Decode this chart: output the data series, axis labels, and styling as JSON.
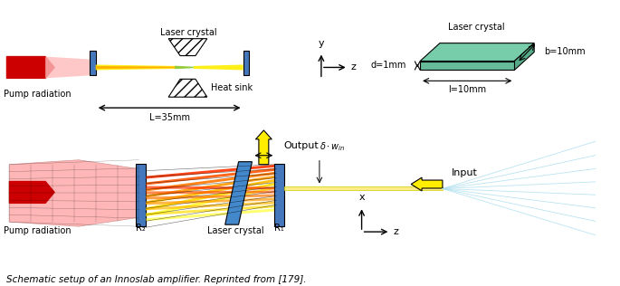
{
  "title": "Schematic setup of an Innoslab amplifier. Reprinted from [179].",
  "bg_color": "#ffffff",
  "top_diagram": {
    "pump_arrow_color": "#cc0000",
    "pump_fill_color": "#ffaaaa",
    "lens_color": "#4477bb",
    "beam_yellow": "#ffff00",
    "beam_green": "#88cc44",
    "L_label": "L=35mm",
    "heat_label": "Heat sink",
    "crystal_label": "Laser crystal"
  },
  "right_diagram": {
    "crystal_color": "#66ccaa",
    "crystal_label": "Laser crystal",
    "d_label": "d=1mm",
    "b_label": "b=10mm",
    "l_label": "l=10mm"
  },
  "bottom_diagram": {
    "pump_arrow_color": "#cc0000",
    "pump_fill_color": "#ffaaaa",
    "mirror_color": "#4477bb",
    "beam_yellow": "#ffff00",
    "beam_orange": "#ff8800",
    "beam_red": "#ff4400",
    "output_label": "Output",
    "input_label": "Input",
    "crystal_label": "Laser crystal",
    "R2_label": "R₂",
    "R1_label": "R₁",
    "delta_w_label": "δ·w_in"
  }
}
